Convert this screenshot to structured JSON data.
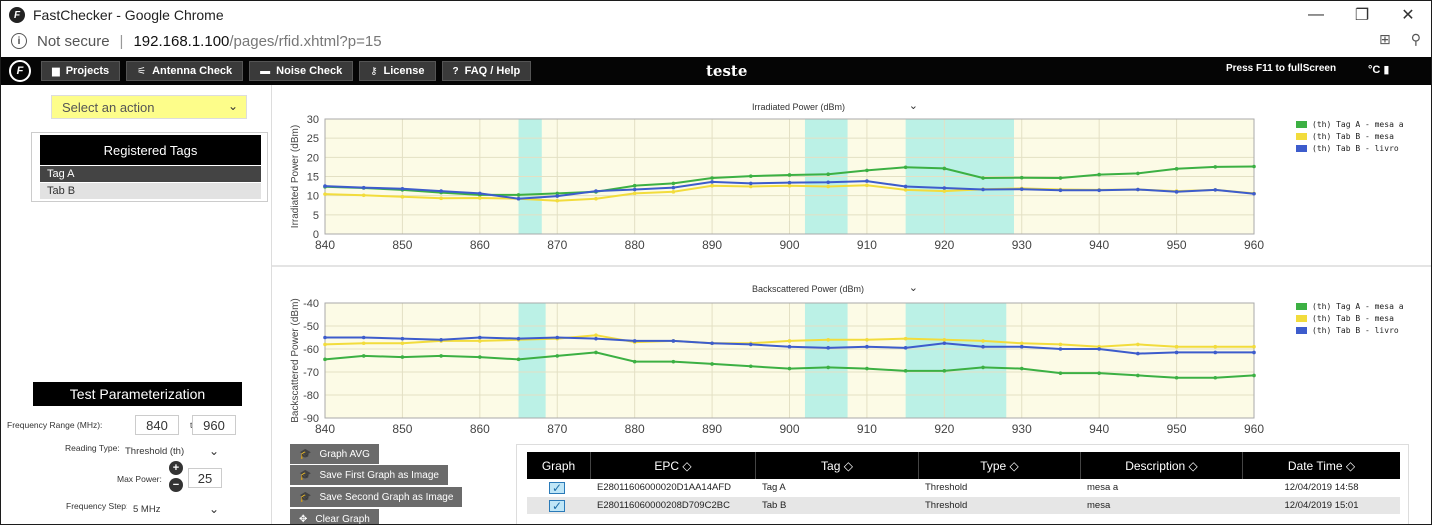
{
  "window": {
    "title": "FastChecker - Google Chrome",
    "app_icon_glyph": "F",
    "controls": {
      "minimize": "—",
      "maximize": "❐",
      "close": "✕"
    }
  },
  "address_bar": {
    "security": "Not secure",
    "separator": "|",
    "host": "192.168.1.100",
    "path": "/pages/rfid.xhtml?p=15",
    "info_glyph": "i",
    "translate_glyph": "⊞",
    "zoom_glyph": "⚲"
  },
  "nav": {
    "logo_glyph": "F",
    "items": [
      {
        "label": "Projects",
        "icon": "folder-icon",
        "glyph": "▆"
      },
      {
        "label": "Antenna Check",
        "icon": "antenna-icon",
        "glyph": "⚟"
      },
      {
        "label": "Noise Check",
        "icon": "noise-icon",
        "glyph": "▬"
      },
      {
        "label": "License",
        "icon": "key-icon",
        "glyph": "⚷"
      },
      {
        "label": "FAQ / Help",
        "icon": "help-icon",
        "glyph": "?"
      }
    ],
    "brand": "teste",
    "fullscreen_hint": "Press F11 to fullScreen",
    "unit": "°C",
    "thermo_glyph": "🌡"
  },
  "left": {
    "action_select": "Select an action",
    "chevron_glyph": "⌄",
    "registered_title": "Registered Tags",
    "tags": [
      {
        "label": "Tag A",
        "selected": true
      },
      {
        "label": "Tab B",
        "selected": false
      }
    ],
    "test_title": "Test Parameterization",
    "freq_label": "Frequency Range (MHz):",
    "freq_from": "840",
    "freq_to_label": "to",
    "freq_to": "960",
    "reading_label": "Reading Type:",
    "reading_value": "Threshold (th)",
    "max_power_label": "Max Power:",
    "max_power_value": "25",
    "plus_glyph": "+",
    "minus_glyph": "−",
    "step_label": "Frequency Step:",
    "step_value": "5 MHz"
  },
  "chart_data": [
    {
      "type": "line",
      "selector": "Irradiated Power (dBm)",
      "ylabel": "Irradiated Power (dBm)",
      "xlim": [
        840,
        960
      ],
      "ylim": [
        0,
        30
      ],
      "yticks": [
        0,
        5,
        10,
        15,
        20,
        25,
        30
      ],
      "xticks": [
        840,
        850,
        860,
        870,
        880,
        890,
        900,
        910,
        920,
        930,
        940,
        950,
        960
      ],
      "x": [
        840,
        845,
        850,
        855,
        860,
        865,
        870,
        875,
        880,
        885,
        890,
        895,
        900,
        905,
        910,
        915,
        920,
        925,
        930,
        935,
        940,
        945,
        950,
        955,
        960
      ],
      "highlight_ranges": [
        [
          865,
          868
        ],
        [
          902,
          907.5
        ],
        [
          915,
          929
        ]
      ],
      "series": [
        {
          "name": "(th) Tag A - mesa a",
          "color": "#3cb043",
          "values": [
            12.3,
            12.0,
            11.5,
            10.8,
            10.2,
            10.2,
            10.6,
            11.0,
            12.6,
            13.2,
            14.6,
            15.1,
            15.4,
            15.6,
            16.6,
            17.4,
            17.1,
            14.6,
            14.7,
            14.6,
            15.5,
            15.8,
            17.0,
            17.5,
            17.6
          ]
        },
        {
          "name": "(th) Tab B - mesa",
          "color": "#f2dc3c",
          "values": [
            10.4,
            10.1,
            9.7,
            9.3,
            9.4,
            9.2,
            8.7,
            9.2,
            10.6,
            11.0,
            12.6,
            12.4,
            12.6,
            12.4,
            12.7,
            11.5,
            11.2,
            11.7,
            11.9,
            11.6,
            11.5,
            11.6,
            11.2,
            11.5,
            10.6
          ]
        },
        {
          "name": "(th) Tab B - livro",
          "color": "#3d5ccc",
          "values": [
            12.5,
            12.1,
            11.8,
            11.2,
            10.6,
            9.2,
            9.9,
            11.2,
            11.6,
            12.1,
            13.6,
            13.2,
            13.4,
            13.5,
            13.8,
            12.4,
            12.0,
            11.6,
            11.7,
            11.4,
            11.4,
            11.6,
            11.0,
            11.5,
            10.5
          ]
        }
      ]
    },
    {
      "type": "line",
      "selector": "Backscattered Power (dBm)",
      "ylabel": "Backscattered Power (dBm)",
      "xlim": [
        840,
        960
      ],
      "ylim": [
        -90,
        -40
      ],
      "yticks": [
        -90,
        -80,
        -70,
        -60,
        -50,
        -40
      ],
      "xticks": [
        840,
        850,
        860,
        870,
        880,
        890,
        900,
        910,
        920,
        930,
        940,
        950,
        960
      ],
      "x": [
        840,
        845,
        850,
        855,
        860,
        865,
        870,
        875,
        880,
        885,
        890,
        895,
        900,
        905,
        910,
        915,
        920,
        925,
        930,
        935,
        940,
        945,
        950,
        955,
        960
      ],
      "highlight_ranges": [
        [
          865,
          868.5
        ],
        [
          902,
          907.5
        ],
        [
          915,
          928
        ]
      ],
      "series": [
        {
          "name": "(th) Tag A - mesa a",
          "color": "#3cb043",
          "values": [
            -64.5,
            -63.0,
            -63.5,
            -63.0,
            -63.5,
            -64.5,
            -63.0,
            -61.5,
            -65.5,
            -65.5,
            -66.5,
            -67.5,
            -68.5,
            -68.0,
            -68.5,
            -69.5,
            -69.5,
            -68.0,
            -68.5,
            -70.5,
            -70.5,
            -71.5,
            -72.5,
            -72.5,
            -71.5
          ]
        },
        {
          "name": "(th) Tab B - mesa",
          "color": "#f2dc3c",
          "values": [
            -58.0,
            -57.5,
            -57.5,
            -56.5,
            -56.5,
            -56.0,
            -55.5,
            -54.0,
            -57.0,
            -56.5,
            -57.5,
            -57.5,
            -56.5,
            -56.0,
            -56.0,
            -55.5,
            -56.0,
            -56.5,
            -57.5,
            -58.0,
            -59.0,
            -58.0,
            -59.0,
            -59.0,
            -59.0
          ]
        },
        {
          "name": "(th) Tab B - livro",
          "color": "#3d5ccc",
          "values": [
            -55.0,
            -55.0,
            -55.5,
            -56.0,
            -55.0,
            -55.5,
            -55.0,
            -55.5,
            -56.5,
            -56.5,
            -57.5,
            -58.0,
            -59.0,
            -59.5,
            -59.0,
            -59.5,
            -57.5,
            -59.0,
            -59.0,
            -60.0,
            -60.0,
            -62.0,
            -61.5,
            -61.5,
            -61.5
          ]
        }
      ]
    }
  ],
  "actions": [
    {
      "label": "Graph AVG",
      "glyph": "🎓"
    },
    {
      "label": "Save First Graph as Image",
      "glyph": "🎓"
    },
    {
      "label": "Save Second Graph as Image",
      "glyph": "🎓"
    },
    {
      "label": "Clear Graph",
      "glyph": "✥"
    }
  ],
  "table": {
    "columns": [
      "Graph",
      "EPC ◇",
      "Tag ◇",
      "Type ◇",
      "Description ◇",
      "Date Time ◇"
    ],
    "check_glyph": "✓",
    "rows": [
      {
        "epc": "E28011606000020D1AA14AFD",
        "tag": "Tag A",
        "type": "Threshold",
        "description": "mesa a",
        "datetime": "12/04/2019 14:58"
      },
      {
        "epc": "E280116060000208D709C2BC",
        "tag": "Tab B",
        "type": "Threshold",
        "description": "mesa",
        "datetime": "12/04/2019 15:01"
      }
    ]
  }
}
